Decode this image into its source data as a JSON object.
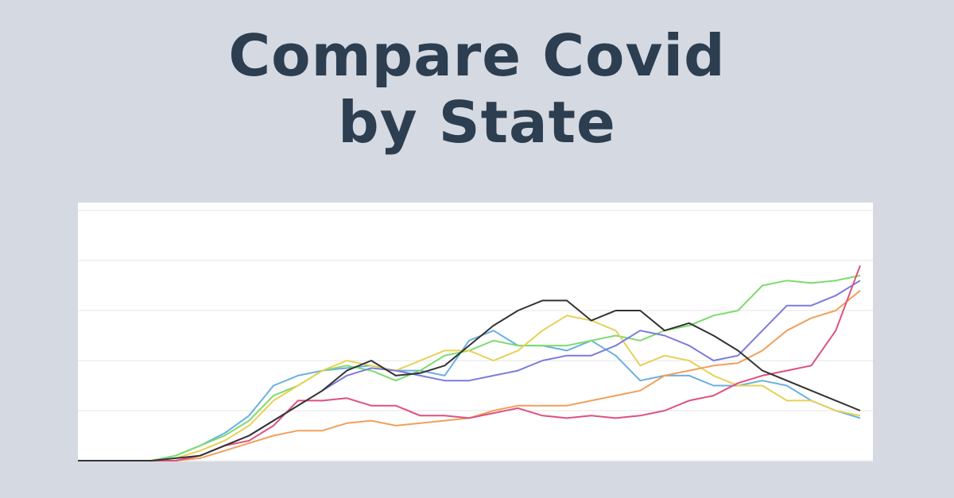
{
  "chart_data": {
    "type": "line",
    "title": "Compare Covid by State",
    "ylim": [
      0,
      5
    ],
    "yticks": [
      0,
      1,
      2,
      3,
      4,
      5
    ],
    "grid": true,
    "series": [
      {
        "color": "#6ab0e0",
        "values": [
          0,
          0,
          0,
          0,
          0.1,
          0.3,
          0.55,
          0.9,
          1.5,
          1.7,
          1.8,
          1.85,
          1.9,
          1.8,
          1.8,
          1.7,
          2.4,
          2.6,
          2.3,
          2.3,
          2.2,
          2.4,
          2.1,
          1.6,
          1.7,
          1.7,
          1.5,
          1.5,
          1.6,
          1.5,
          1.2,
          1.0,
          0.85
        ]
      },
      {
        "color": "#7ddb6e",
        "values": [
          0,
          0,
          0,
          0,
          0.1,
          0.3,
          0.5,
          0.8,
          1.3,
          1.5,
          1.8,
          1.9,
          1.8,
          1.6,
          1.8,
          2.1,
          2.2,
          2.4,
          2.3,
          2.3,
          2.3,
          2.4,
          2.5,
          2.4,
          2.6,
          2.7,
          2.9,
          3.0,
          3.5,
          3.6,
          3.55,
          3.6,
          3.7
        ]
      },
      {
        "color": "#e8d056",
        "values": [
          0,
          0,
          0,
          0,
          0.05,
          0.2,
          0.4,
          0.7,
          1.2,
          1.5,
          1.8,
          2.0,
          1.9,
          1.8,
          2.0,
          2.2,
          2.2,
          2.0,
          2.2,
          2.6,
          2.9,
          2.8,
          2.6,
          1.9,
          2.1,
          2.0,
          1.7,
          1.5,
          1.5,
          1.2,
          1.2,
          1.0,
          0.9
        ]
      },
      {
        "color": "#f0a05a",
        "values": [
          0,
          0,
          0,
          0,
          0,
          0.05,
          0.2,
          0.35,
          0.5,
          0.6,
          0.6,
          0.75,
          0.8,
          0.7,
          0.75,
          0.8,
          0.85,
          1.0,
          1.1,
          1.1,
          1.1,
          1.2,
          1.3,
          1.4,
          1.7,
          1.8,
          1.9,
          1.95,
          2.2,
          2.6,
          2.85,
          3.0,
          3.4
        ]
      },
      {
        "color": "#7b7bdb",
        "values": [
          0,
          0,
          0,
          0,
          0,
          0.1,
          0.3,
          0.5,
          0.8,
          1.1,
          1.4,
          1.7,
          1.85,
          1.8,
          1.7,
          1.6,
          1.6,
          1.7,
          1.8,
          2.0,
          2.1,
          2.1,
          2.3,
          2.6,
          2.5,
          2.3,
          2.0,
          2.1,
          2.6,
          3.1,
          3.1,
          3.3,
          3.6
        ]
      },
      {
        "color": "#e0507a",
        "values": [
          0,
          0,
          0,
          0,
          0,
          0.1,
          0.3,
          0.4,
          0.7,
          1.2,
          1.2,
          1.25,
          1.1,
          1.1,
          0.9,
          0.9,
          0.85,
          0.95,
          1.05,
          0.9,
          0.85,
          0.9,
          0.85,
          0.9,
          1.0,
          1.2,
          1.3,
          1.55,
          1.7,
          1.8,
          1.9,
          2.6,
          3.9
        ]
      },
      {
        "color": "#333333",
        "values": [
          0,
          0,
          0,
          0,
          0.05,
          0.1,
          0.3,
          0.5,
          0.8,
          1.1,
          1.4,
          1.8,
          2.0,
          1.7,
          1.75,
          1.9,
          2.3,
          2.7,
          3.0,
          3.2,
          3.2,
          2.8,
          3.0,
          3.0,
          2.6,
          2.75,
          2.5,
          2.2,
          1.8,
          1.6,
          1.4,
          1.2,
          1.0
        ]
      }
    ]
  }
}
